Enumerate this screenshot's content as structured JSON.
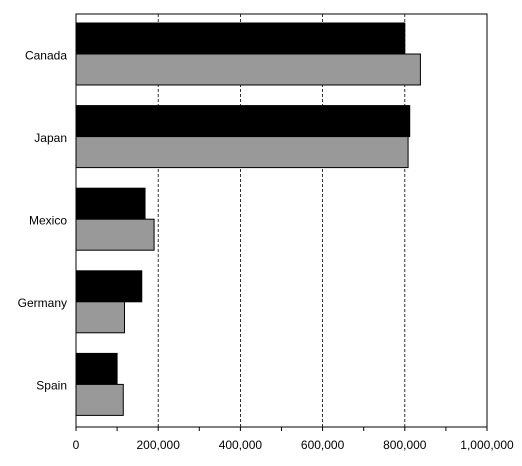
{
  "chart_data": {
    "type": "bar",
    "orientation": "horizontal",
    "categories": [
      "Canada",
      "Japan",
      "Mexico",
      "Germany",
      "Spain"
    ],
    "series": [
      {
        "color": "#000000",
        "values": [
          800000,
          812000,
          168000,
          160000,
          100000
        ]
      },
      {
        "color": "#999999",
        "values": [
          838000,
          808000,
          190000,
          118000,
          115000
        ]
      }
    ],
    "xlim": [
      0,
      1000000
    ],
    "xticks": [
      0,
      200000,
      400000,
      600000,
      800000,
      1000000
    ],
    "xtick_labels": [
      "0",
      "200,000",
      "400,000",
      "600,000",
      "800,000",
      "1,000,000"
    ],
    "grid": {
      "x": true,
      "style": "dashed"
    },
    "legend": "none"
  }
}
